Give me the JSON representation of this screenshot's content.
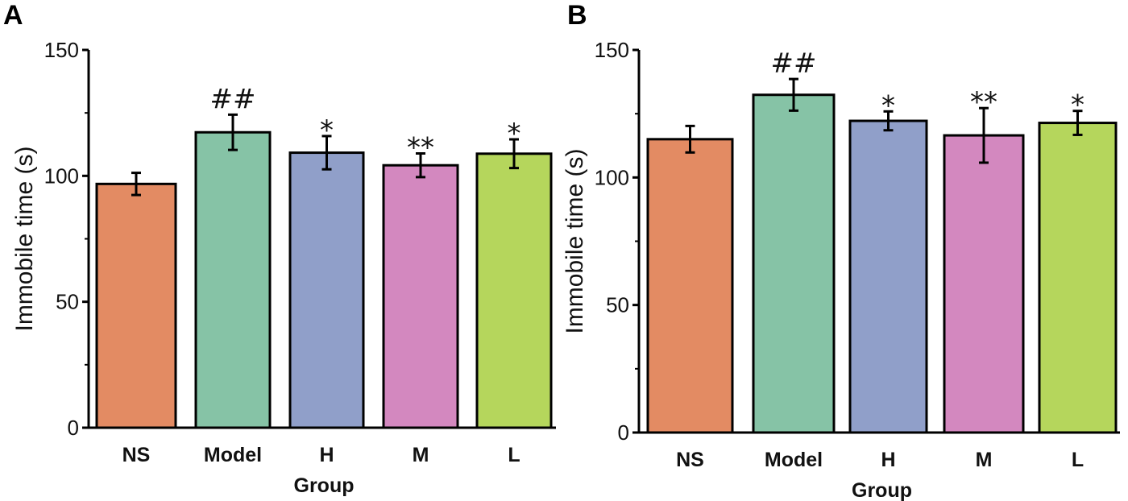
{
  "chart_data": [
    {
      "type": "bar",
      "panel": "A",
      "categories": [
        "NS",
        "Model",
        "H",
        "M",
        "L"
      ],
      "values": [
        96.8,
        117.3,
        109.2,
        104.2,
        108.8
      ],
      "errors": [
        4.4,
        7.0,
        6.6,
        4.7,
        5.7
      ],
      "annotations": [
        "",
        "##",
        "*",
        "**",
        "*"
      ],
      "colors": [
        "#E38B63",
        "#86C3A6",
        "#909FC9",
        "#D388BF",
        "#B5D65C"
      ],
      "xlabel": "Group",
      "ylabel": "Immobile time (s)",
      "ylim": [
        0,
        150
      ],
      "yticks": [
        0,
        50,
        100,
        150
      ]
    },
    {
      "type": "bar",
      "panel": "B",
      "categories": [
        "NS",
        "Model",
        "H",
        "M",
        "L"
      ],
      "values": [
        115.0,
        132.4,
        122.2,
        116.5,
        121.4
      ],
      "errors": [
        5.2,
        6.2,
        3.7,
        10.7,
        4.7
      ],
      "annotations": [
        "",
        "##",
        "*",
        "**",
        "*"
      ],
      "colors": [
        "#E38B63",
        "#86C3A6",
        "#909FC9",
        "#D388BF",
        "#B5D65C"
      ],
      "xlabel": "Group",
      "ylabel": "Immobile time (s)",
      "ylim": [
        0,
        150
      ],
      "yticks": [
        0,
        50,
        100,
        150
      ]
    }
  ]
}
